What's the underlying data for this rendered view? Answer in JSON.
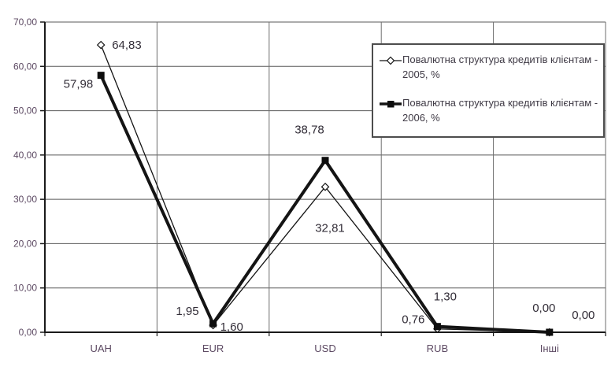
{
  "chart_data": {
    "type": "line",
    "categories": [
      "UAH",
      "EUR",
      "USD",
      "RUB",
      "Інші"
    ],
    "series": [
      {
        "name": "Повалютна структура кредитів клієнтам - 2005, %",
        "legend_lines": [
          "Повалютна структура кредитів клієнтам -",
          "2005, %"
        ],
        "marker": "open-diamond",
        "line_style": "thin",
        "values": [
          64.83,
          1.6,
          32.81,
          0.76,
          0.0
        ],
        "labels": [
          "64,83",
          "1,60",
          "32,81",
          "0,76",
          "0,00"
        ]
      },
      {
        "name": "Повалютна структура кредитів клієнтам - 2006, %",
        "legend_lines": [
          "Повалютна структура кредитів клієнтам -",
          "2006, %"
        ],
        "marker": "filled-square",
        "line_style": "thick",
        "values": [
          57.98,
          1.95,
          38.78,
          1.3,
          0.0
        ],
        "labels": [
          "57,98",
          "1,95",
          "38,78",
          "1,30",
          "0,00"
        ]
      }
    ],
    "ylim": [
      0,
      70
    ],
    "ytick_step": 10,
    "ytick_labels": [
      "0,00",
      "10,00",
      "20,00",
      "30,00",
      "40,00",
      "50,00",
      "60,00",
      "70,00"
    ],
    "grid": true,
    "legend_position": "top-right"
  },
  "colors": {
    "background": "#ffffff",
    "series_line": "#141414",
    "grid_horizontal": "#595959",
    "grid_vertical": "#6e6e6e",
    "axis": "#1a1a1a",
    "tick_label": "#5d4a63",
    "data_label": "#332e38",
    "legend_text": "#3f3a45",
    "legend_border": "#4d4d4d"
  }
}
